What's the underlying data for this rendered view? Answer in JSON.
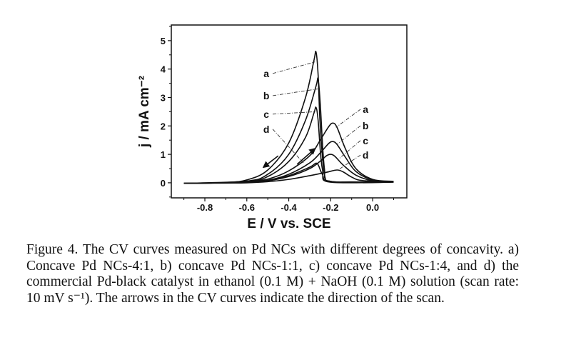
{
  "caption": {
    "figure_label": "Figure 4.",
    "text": "The CV curves measured on Pd NCs with different degrees of concavity. a) Concave Pd NCs-4:1, b) concave Pd NCs-1:1, c) concave Pd NCs-1:4, and d) the commercial Pd-black catalyst in ethanol (0.1 M) + NaOH (0.1 M) solution (scan rate: 10 mV s⁻¹). The arrows in the CV curves indicate the direction of the scan."
  },
  "chart_data": {
    "type": "line",
    "title": "",
    "xlabel": "E / V vs. SCE",
    "ylabel": "j / mA cm⁻²",
    "xlim": [
      -0.96,
      0.163
    ],
    "ylim": [
      -0.53,
      5.55
    ],
    "xticks": [
      "-0.8",
      "-0.6",
      "-0.4",
      "-0.2",
      "0.0"
    ],
    "xtick_values": [
      -0.8,
      -0.6,
      -0.4,
      -0.2,
      0.0
    ],
    "yticks": [
      "0",
      "1",
      "2",
      "3",
      "4",
      "5"
    ],
    "ytick_values": [
      0,
      1,
      2,
      3,
      4,
      5
    ],
    "grid": false,
    "series": [
      {
        "name": "a forward",
        "label": "a",
        "points": [
          [
            -0.9,
            -0.02
          ],
          [
            -0.7,
            0.0
          ],
          [
            -0.6,
            0.03
          ],
          [
            -0.5,
            0.13
          ],
          [
            -0.4,
            0.42
          ],
          [
            -0.3,
            0.95
          ],
          [
            -0.25,
            1.5
          ],
          [
            -0.21,
            1.97
          ],
          [
            -0.19,
            2.1
          ],
          [
            -0.17,
            1.95
          ],
          [
            -0.13,
            1.2
          ],
          [
            -0.08,
            0.5
          ],
          [
            0.0,
            0.12
          ],
          [
            0.1,
            0.05
          ]
        ]
      },
      {
        "name": "b forward",
        "label": "b",
        "points": [
          [
            -0.9,
            -0.02
          ],
          [
            -0.7,
            0.0
          ],
          [
            -0.6,
            0.02
          ],
          [
            -0.5,
            0.09
          ],
          [
            -0.4,
            0.3
          ],
          [
            -0.3,
            0.7
          ],
          [
            -0.25,
            1.05
          ],
          [
            -0.21,
            1.38
          ],
          [
            -0.19,
            1.45
          ],
          [
            -0.17,
            1.35
          ],
          [
            -0.13,
            0.9
          ],
          [
            -0.08,
            0.4
          ],
          [
            0.0,
            0.1
          ],
          [
            0.1,
            0.04
          ]
        ]
      },
      {
        "name": "c forward",
        "label": "c",
        "points": [
          [
            -0.9,
            -0.02
          ],
          [
            -0.7,
            0.0
          ],
          [
            -0.6,
            0.02
          ],
          [
            -0.5,
            0.07
          ],
          [
            -0.4,
            0.22
          ],
          [
            -0.3,
            0.5
          ],
          [
            -0.25,
            0.76
          ],
          [
            -0.22,
            0.95
          ],
          [
            -0.2,
            1.0
          ],
          [
            -0.18,
            0.93
          ],
          [
            -0.14,
            0.62
          ],
          [
            -0.08,
            0.27
          ],
          [
            0.0,
            0.07
          ],
          [
            0.1,
            0.03
          ]
        ]
      },
      {
        "name": "d forward",
        "label": "d",
        "points": [
          [
            -0.9,
            -0.02
          ],
          [
            -0.7,
            -0.01
          ],
          [
            -0.6,
            0.0
          ],
          [
            -0.5,
            0.04
          ],
          [
            -0.4,
            0.12
          ],
          [
            -0.3,
            0.25
          ],
          [
            -0.22,
            0.37
          ],
          [
            -0.17,
            0.45
          ],
          [
            -0.14,
            0.38
          ],
          [
            -0.1,
            0.2
          ],
          [
            -0.05,
            0.08
          ],
          [
            0.1,
            0.03
          ]
        ]
      },
      {
        "name": "a backward",
        "label": "a",
        "points": [
          [
            0.1,
            0.03
          ],
          [
            -0.1,
            0.03
          ],
          [
            -0.2,
            0.05
          ],
          [
            -0.23,
            0.3
          ],
          [
            -0.25,
            2.0
          ],
          [
            -0.26,
            3.8
          ],
          [
            -0.27,
            4.6
          ],
          [
            -0.28,
            4.3
          ],
          [
            -0.32,
            3.0
          ],
          [
            -0.4,
            1.4
          ],
          [
            -0.5,
            0.45
          ],
          [
            -0.6,
            0.1
          ],
          [
            -0.7,
            0.01
          ],
          [
            -0.9,
            -0.02
          ]
        ]
      },
      {
        "name": "b backward",
        "label": "b",
        "points": [
          [
            0.1,
            0.03
          ],
          [
            -0.2,
            0.05
          ],
          [
            -0.23,
            0.5
          ],
          [
            -0.25,
            2.8
          ],
          [
            -0.26,
            3.65
          ],
          [
            -0.27,
            3.4
          ],
          [
            -0.32,
            2.2
          ],
          [
            -0.4,
            1.0
          ],
          [
            -0.5,
            0.3
          ],
          [
            -0.6,
            0.06
          ],
          [
            -0.9,
            -0.02
          ]
        ]
      },
      {
        "name": "c backward",
        "label": "c",
        "points": [
          [
            0.1,
            0.03
          ],
          [
            -0.2,
            0.04
          ],
          [
            -0.24,
            0.5
          ],
          [
            -0.26,
            2.2
          ],
          [
            -0.27,
            2.65
          ],
          [
            -0.28,
            2.45
          ],
          [
            -0.32,
            1.6
          ],
          [
            -0.4,
            0.75
          ],
          [
            -0.5,
            0.22
          ],
          [
            -0.6,
            0.04
          ],
          [
            -0.9,
            -0.02
          ]
        ]
      },
      {
        "name": "d backward",
        "label": "d",
        "points": [
          [
            0.1,
            0.02
          ],
          [
            -0.2,
            0.02
          ],
          [
            -0.24,
            0.3
          ],
          [
            -0.265,
            0.68
          ],
          [
            -0.3,
            0.55
          ],
          [
            -0.4,
            0.25
          ],
          [
            -0.5,
            0.08
          ],
          [
            -0.6,
            0.01
          ],
          [
            -0.9,
            -0.02
          ]
        ]
      }
    ],
    "annotations": [
      {
        "text": "a",
        "at": [
          -0.507,
          3.72
        ],
        "to": [
          -0.275,
          4.25
        ]
      },
      {
        "text": "b",
        "at": [
          -0.507,
          2.94
        ],
        "to": [
          -0.262,
          3.3
        ]
      },
      {
        "text": "c",
        "at": [
          -0.507,
          2.29
        ],
        "to": [
          -0.272,
          2.5
        ]
      },
      {
        "text": "d",
        "at": [
          -0.507,
          1.76
        ],
        "to": [
          -0.33,
          0.7
        ]
      },
      {
        "text": "a",
        "at": [
          -0.034,
          2.46
        ],
        "to": [
          -0.175,
          1.95
        ]
      },
      {
        "text": "b",
        "at": [
          -0.034,
          1.88
        ],
        "to": [
          -0.17,
          1.35
        ]
      },
      {
        "text": "c",
        "at": [
          -0.034,
          1.36
        ],
        "to": [
          -0.16,
          0.85
        ]
      },
      {
        "text": "d",
        "at": [
          -0.034,
          0.85
        ],
        "to": [
          -0.165,
          0.45
        ]
      }
    ],
    "arrows": [
      {
        "direction": "backward scan",
        "from": [
          -0.45,
          0.95
        ],
        "to": [
          -0.52,
          0.55
        ]
      },
      {
        "direction": "forward scan",
        "from": [
          -0.36,
          0.65
        ],
        "to": [
          -0.275,
          1.2
        ]
      }
    ]
  }
}
